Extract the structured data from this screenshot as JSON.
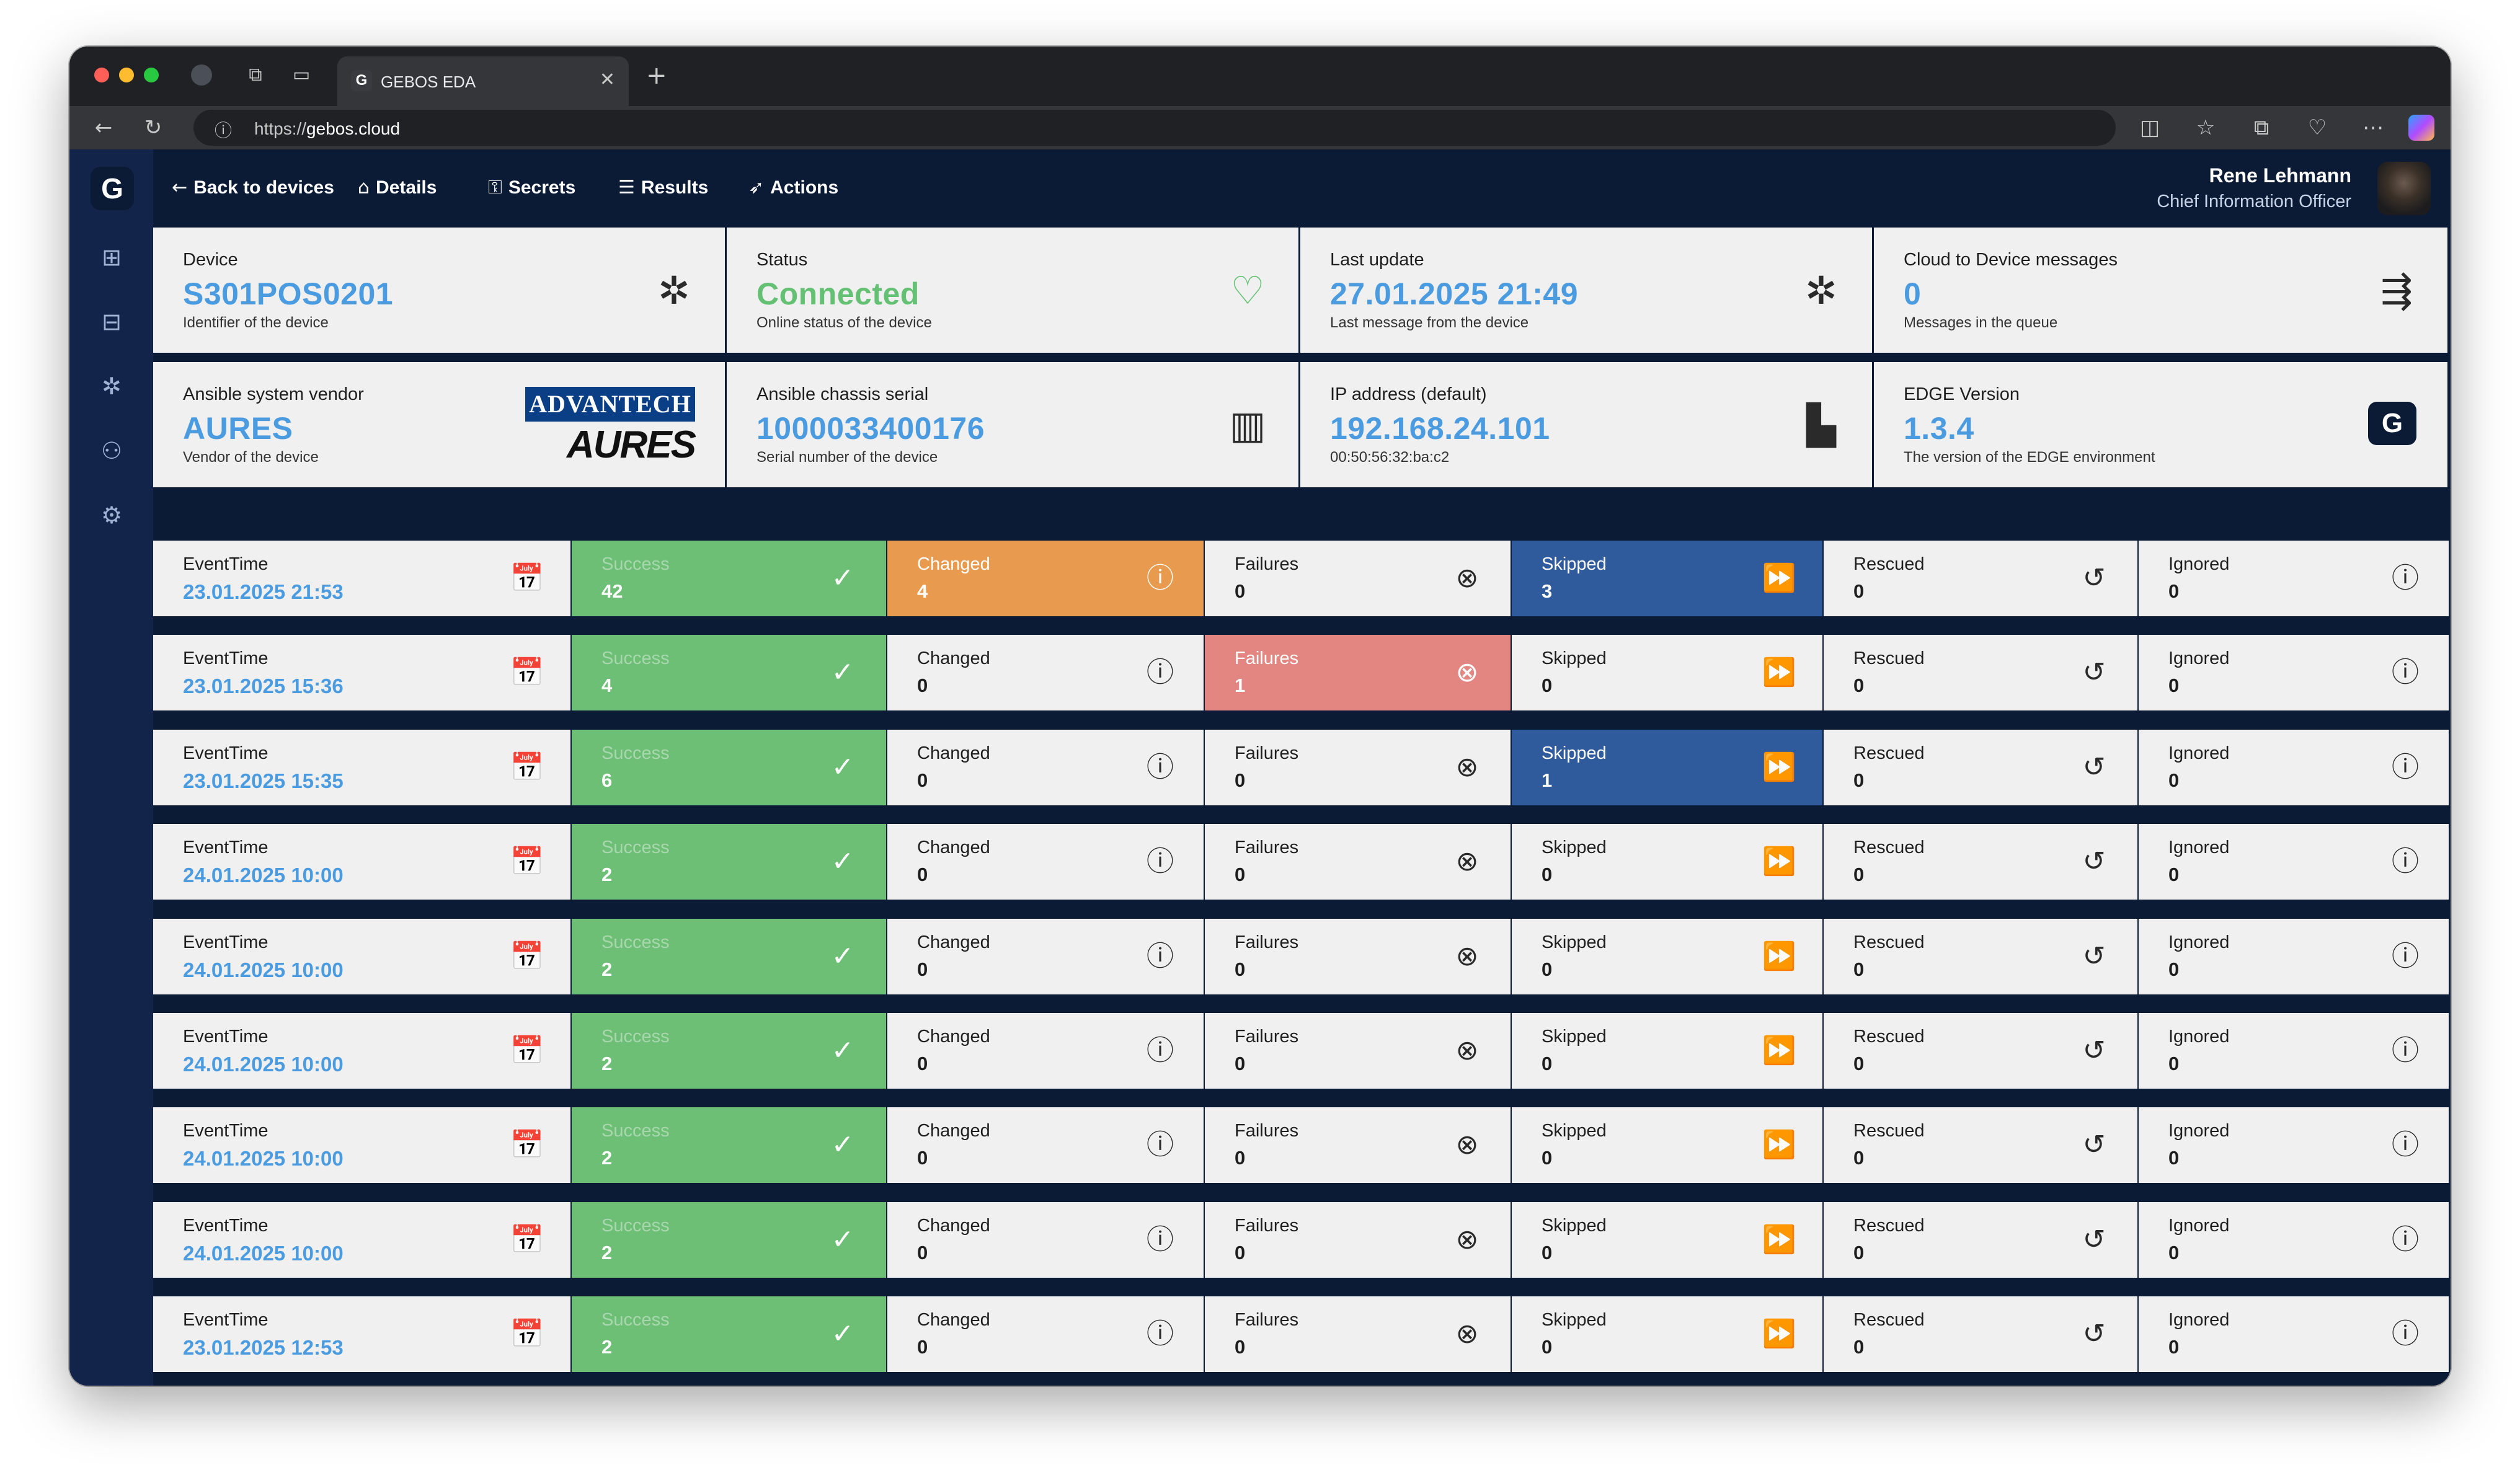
{
  "browser": {
    "tab_title": "GEBOS EDA",
    "url_scheme": "https://",
    "url_host": "gebos.cloud"
  },
  "nav": {
    "back": "Back to devices",
    "details": "Details",
    "secrets": "Secrets",
    "results": "Results",
    "actions": "Actions"
  },
  "user": {
    "name": "Rene Lehmann",
    "role": "Chief Information Officer"
  },
  "cards": {
    "device": {
      "label": "Device",
      "value": "S301POS0201",
      "sub": "Identifier of the device"
    },
    "status": {
      "label": "Status",
      "value": "Connected",
      "sub": "Online status of the device"
    },
    "last_update": {
      "label": "Last update",
      "value": "27.01.2025 21:49",
      "sub": "Last message from the device"
    },
    "c2d": {
      "label": "Cloud to Device messages",
      "value": "0",
      "sub": "Messages in the queue"
    },
    "vendor": {
      "label": "Ansible system vendor",
      "value": "AURES",
      "sub": "Vendor of the device",
      "logo_top": "ADVANTECH",
      "logo_bottom": "AURES"
    },
    "serial": {
      "label": "Ansible chassis serial",
      "value": "1000033400176",
      "sub": "Serial number of the device"
    },
    "ip": {
      "label": "IP address (default)",
      "value": "192.168.24.101",
      "sub": "00:50:56:32:ba:c2"
    },
    "edge": {
      "label": "EDGE Version",
      "value": "1.3.4",
      "sub": "The version of the EDGE environment"
    }
  },
  "labels": {
    "time": "EventTime",
    "success": "Success",
    "changed": "Changed",
    "failures": "Failures",
    "skipped": "Skipped",
    "rescued": "Rescued",
    "ignored": "Ignored"
  },
  "results": [
    {
      "time": "23.01.2025 21:53",
      "success": "42",
      "changed": "4",
      "failures": "0",
      "skipped": "3",
      "rescued": "0",
      "ignored": "0"
    },
    {
      "time": "23.01.2025 15:36",
      "success": "4",
      "changed": "0",
      "failures": "1",
      "skipped": "0",
      "rescued": "0",
      "ignored": "0"
    },
    {
      "time": "23.01.2025 15:35",
      "success": "6",
      "changed": "0",
      "failures": "0",
      "skipped": "1",
      "rescued": "0",
      "ignored": "0"
    },
    {
      "time": "24.01.2025 10:00",
      "success": "2",
      "changed": "0",
      "failures": "0",
      "skipped": "0",
      "rescued": "0",
      "ignored": "0"
    },
    {
      "time": "24.01.2025 10:00",
      "success": "2",
      "changed": "0",
      "failures": "0",
      "skipped": "0",
      "rescued": "0",
      "ignored": "0"
    },
    {
      "time": "24.01.2025 10:00",
      "success": "2",
      "changed": "0",
      "failures": "0",
      "skipped": "0",
      "rescued": "0",
      "ignored": "0"
    },
    {
      "time": "24.01.2025 10:00",
      "success": "2",
      "changed": "0",
      "failures": "0",
      "skipped": "0",
      "rescued": "0",
      "ignored": "0"
    },
    {
      "time": "24.01.2025 10:00",
      "success": "2",
      "changed": "0",
      "failures": "0",
      "skipped": "0",
      "rescued": "0",
      "ignored": "0"
    },
    {
      "time": "23.01.2025 12:53",
      "success": "2",
      "changed": "0",
      "failures": "0",
      "skipped": "0",
      "rescued": "0",
      "ignored": "0"
    }
  ],
  "colors": {
    "success": "#6dbf75",
    "changed": "#e89b4e",
    "failures": "#e38580",
    "skipped": "#2f5a9c",
    "accent": "#4a9be0",
    "background": "#0b1b36"
  }
}
